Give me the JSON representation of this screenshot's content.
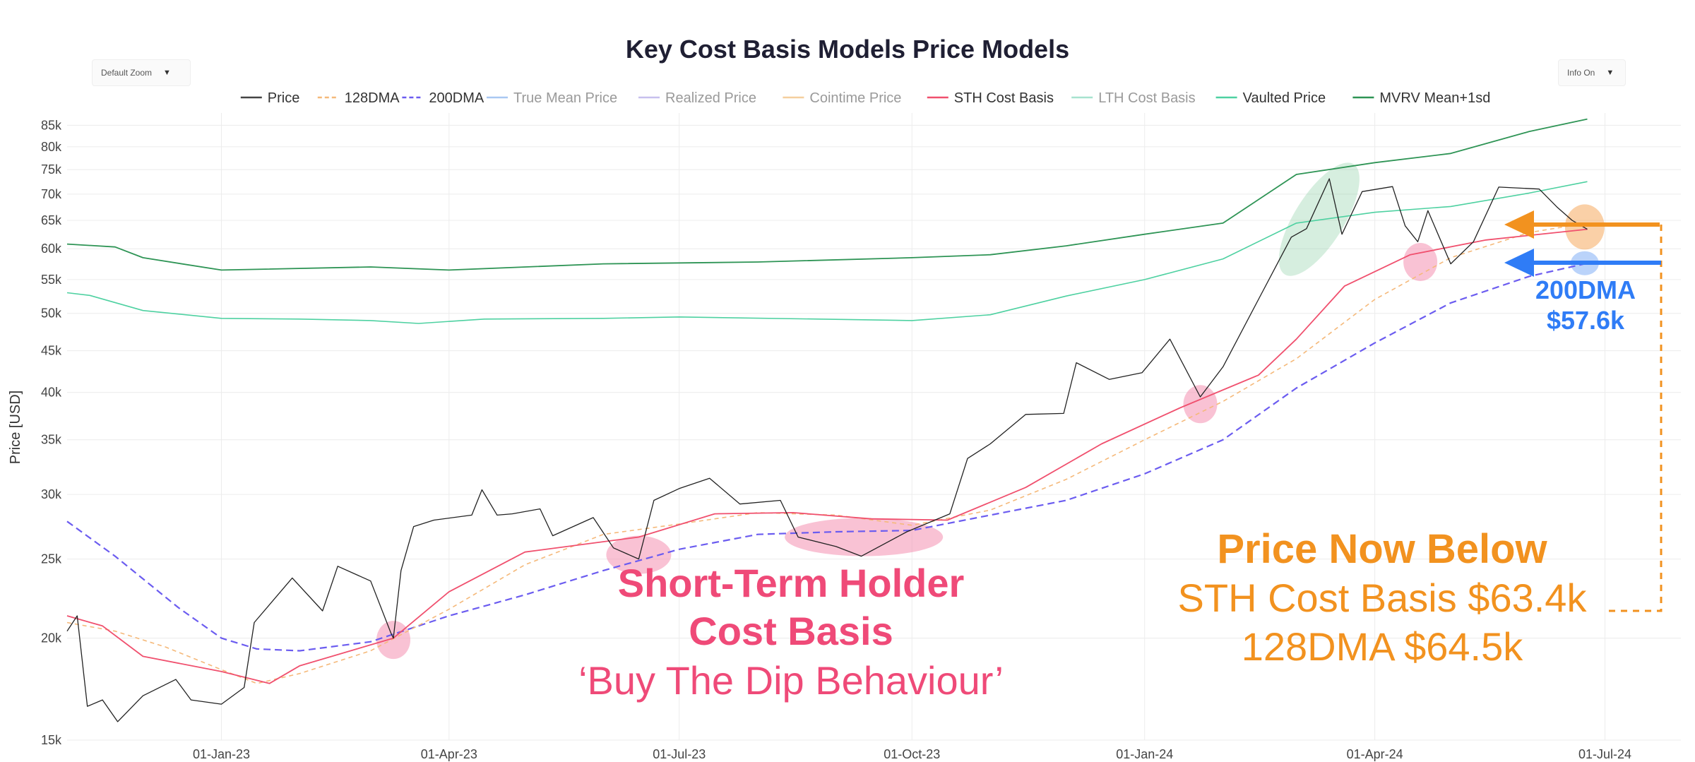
{
  "controls": {
    "zoom_label": "Default Zoom",
    "info_label": "Info On",
    "caret": "▼"
  },
  "chart_data": {
    "type": "line",
    "title": "Key Cost Basis Models Price Models",
    "xlabel": "",
    "ylabel": "Price [USD]",
    "y_scale": "log",
    "ylim": [
      15000,
      88000
    ],
    "xlim": [
      "2022-11-01",
      "2024-07-31"
    ],
    "grid": true,
    "legend_position": "top-center",
    "y_ticks": [
      {
        "value": 15000,
        "label": "15k"
      },
      {
        "value": 20000,
        "label": "20k"
      },
      {
        "value": 25000,
        "label": "25k"
      },
      {
        "value": 30000,
        "label": "30k"
      },
      {
        "value": 35000,
        "label": "35k"
      },
      {
        "value": 40000,
        "label": "40k"
      },
      {
        "value": 45000,
        "label": "45k"
      },
      {
        "value": 50000,
        "label": "50k"
      },
      {
        "value": 55000,
        "label": "55k"
      },
      {
        "value": 60000,
        "label": "60k"
      },
      {
        "value": 65000,
        "label": "65k"
      },
      {
        "value": 70000,
        "label": "70k"
      },
      {
        "value": 75000,
        "label": "75k"
      },
      {
        "value": 80000,
        "label": "80k"
      },
      {
        "value": 85000,
        "label": "85k"
      }
    ],
    "x_ticks": [
      {
        "date": "2023-01-01",
        "label": "01-Jan-23"
      },
      {
        "date": "2023-04-01",
        "label": "01-Apr-23"
      },
      {
        "date": "2023-07-01",
        "label": "01-Jul-23"
      },
      {
        "date": "2023-10-01",
        "label": "01-Oct-23"
      },
      {
        "date": "2024-01-01",
        "label": "01-Jan-24"
      },
      {
        "date": "2024-04-01",
        "label": "01-Apr-24"
      },
      {
        "date": "2024-07-01",
        "label": "01-Jul-24"
      }
    ],
    "legend": [
      {
        "name": "Price",
        "color": "#444444",
        "dash": "solid",
        "muted": false
      },
      {
        "name": "128DMA",
        "color": "#f5b97a",
        "dash": "dash",
        "muted": false
      },
      {
        "name": "200DMA",
        "color": "#6b5cf0",
        "dash": "dash",
        "muted": false
      },
      {
        "name": "True Mean Price",
        "color": "#a9c8f2",
        "dash": "solid",
        "muted": true
      },
      {
        "name": "Realized Price",
        "color": "#c7c0ee",
        "dash": "solid",
        "muted": true
      },
      {
        "name": "Cointime Price",
        "color": "#f5cf9e",
        "dash": "solid",
        "muted": true
      },
      {
        "name": "STH Cost Basis",
        "color": "#f0506e",
        "dash": "solid",
        "muted": false
      },
      {
        "name": "LTH Cost Basis",
        "color": "#a7e3cf",
        "dash": "solid",
        "muted": true
      },
      {
        "name": "Vaulted Price",
        "color": "#4ed1a1",
        "dash": "solid",
        "muted": false
      },
      {
        "name": "MVRV Mean+1sd",
        "color": "#2e9455",
        "dash": "solid",
        "muted": false
      }
    ],
    "series": [
      {
        "name": "Price",
        "key": "price",
        "color": "#222222",
        "width": 1.3,
        "dash": "",
        "points": [
          [
            "2022-11-01",
            20400
          ],
          [
            "2022-11-05",
            21300
          ],
          [
            "2022-11-09",
            16500
          ],
          [
            "2022-11-15",
            16800
          ],
          [
            "2022-11-21",
            15800
          ],
          [
            "2022-12-01",
            17000
          ],
          [
            "2022-12-14",
            17800
          ],
          [
            "2022-12-20",
            16800
          ],
          [
            "2023-01-01",
            16600
          ],
          [
            "2023-01-10",
            17400
          ],
          [
            "2023-01-14",
            20900
          ],
          [
            "2023-01-29",
            23700
          ],
          [
            "2023-02-10",
            21600
          ],
          [
            "2023-02-16",
            24500
          ],
          [
            "2023-03-01",
            23500
          ],
          [
            "2023-03-09",
            20300
          ],
          [
            "2023-03-10",
            20000
          ],
          [
            "2023-03-13",
            24200
          ],
          [
            "2023-03-18",
            27400
          ],
          [
            "2023-03-26",
            27900
          ],
          [
            "2023-04-10",
            28300
          ],
          [
            "2023-04-14",
            30400
          ],
          [
            "2023-04-20",
            28300
          ],
          [
            "2023-04-26",
            28400
          ],
          [
            "2023-05-07",
            28800
          ],
          [
            "2023-05-12",
            26700
          ],
          [
            "2023-05-28",
            28100
          ],
          [
            "2023-06-05",
            25800
          ],
          [
            "2023-06-15",
            25000
          ],
          [
            "2023-06-21",
            29500
          ],
          [
            "2023-07-01",
            30500
          ],
          [
            "2023-07-13",
            31400
          ],
          [
            "2023-07-25",
            29200
          ],
          [
            "2023-08-10",
            29500
          ],
          [
            "2023-08-17",
            26600
          ],
          [
            "2023-09-01",
            25900
          ],
          [
            "2023-09-11",
            25200
          ],
          [
            "2023-09-29",
            27000
          ],
          [
            "2023-10-16",
            28400
          ],
          [
            "2023-10-23",
            33200
          ],
          [
            "2023-11-01",
            34600
          ],
          [
            "2023-11-15",
            37600
          ],
          [
            "2023-11-30",
            37700
          ],
          [
            "2023-12-05",
            43500
          ],
          [
            "2023-12-18",
            41500
          ],
          [
            "2023-12-31",
            42300
          ],
          [
            "2024-01-11",
            46500
          ],
          [
            "2024-01-23",
            39500
          ],
          [
            "2024-02-01",
            43000
          ],
          [
            "2024-02-15",
            52000
          ],
          [
            "2024-02-28",
            62000
          ],
          [
            "2024-03-05",
            63500
          ],
          [
            "2024-03-14",
            73100
          ],
          [
            "2024-03-19",
            62500
          ],
          [
            "2024-03-27",
            70500
          ],
          [
            "2024-04-08",
            71500
          ],
          [
            "2024-04-13",
            64000
          ],
          [
            "2024-04-18",
            61200
          ],
          [
            "2024-04-22",
            66800
          ],
          [
            "2024-05-01",
            57500
          ],
          [
            "2024-05-10",
            61200
          ],
          [
            "2024-05-20",
            71400
          ],
          [
            "2024-06-05",
            71000
          ],
          [
            "2024-06-12",
            67500
          ],
          [
            "2024-06-18",
            65000
          ],
          [
            "2024-06-24",
            63400
          ]
        ]
      },
      {
        "name": "128DMA",
        "key": "dma128",
        "color": "#f5b97a",
        "width": 1.6,
        "dash": "6,5",
        "points": [
          [
            "2022-11-01",
            20900
          ],
          [
            "2022-11-20",
            20400
          ],
          [
            "2022-12-10",
            19500
          ],
          [
            "2023-01-01",
            18300
          ],
          [
            "2023-01-15",
            17600
          ],
          [
            "2023-02-01",
            18100
          ],
          [
            "2023-03-01",
            19300
          ],
          [
            "2023-04-01",
            21700
          ],
          [
            "2023-05-01",
            24600
          ],
          [
            "2023-06-01",
            26800
          ],
          [
            "2023-07-01",
            27600
          ],
          [
            "2023-08-01",
            28500
          ],
          [
            "2023-09-01",
            28300
          ],
          [
            "2023-10-01",
            27500
          ],
          [
            "2023-11-01",
            28700
          ],
          [
            "2023-12-01",
            31300
          ],
          [
            "2024-01-01",
            35000
          ],
          [
            "2024-02-01",
            39000
          ],
          [
            "2024-03-01",
            44000
          ],
          [
            "2024-04-01",
            52000
          ],
          [
            "2024-05-01",
            58500
          ],
          [
            "2024-06-01",
            62800
          ],
          [
            "2024-06-24",
            64500
          ]
        ]
      },
      {
        "name": "200DMA",
        "key": "dma200",
        "color": "#6b5cf0",
        "width": 2.2,
        "dash": "10,6",
        "points": [
          [
            "2022-11-01",
            27800
          ],
          [
            "2022-11-20",
            25200
          ],
          [
            "2022-12-15",
            21800
          ],
          [
            "2023-01-01",
            20000
          ],
          [
            "2023-01-15",
            19400
          ],
          [
            "2023-02-01",
            19300
          ],
          [
            "2023-03-01",
            19800
          ],
          [
            "2023-04-01",
            21300
          ],
          [
            "2023-05-01",
            22600
          ],
          [
            "2023-06-01",
            24200
          ],
          [
            "2023-07-01",
            25700
          ],
          [
            "2023-08-01",
            26800
          ],
          [
            "2023-09-01",
            27000
          ],
          [
            "2023-10-01",
            27100
          ],
          [
            "2023-11-01",
            28300
          ],
          [
            "2023-12-01",
            29500
          ],
          [
            "2024-01-01",
            31800
          ],
          [
            "2024-02-01",
            35000
          ],
          [
            "2024-03-01",
            40500
          ],
          [
            "2024-04-01",
            46000
          ],
          [
            "2024-05-01",
            51500
          ],
          [
            "2024-06-01",
            55500
          ],
          [
            "2024-06-24",
            57600
          ]
        ]
      },
      {
        "name": "STH Cost Basis",
        "key": "sth",
        "color": "#f0506e",
        "width": 1.8,
        "dash": "",
        "points": [
          [
            "2022-11-01",
            21300
          ],
          [
            "2022-11-15",
            20700
          ],
          [
            "2022-12-01",
            19000
          ],
          [
            "2023-01-01",
            18200
          ],
          [
            "2023-01-20",
            17600
          ],
          [
            "2023-02-01",
            18500
          ],
          [
            "2023-03-10",
            20000
          ],
          [
            "2023-04-01",
            22800
          ],
          [
            "2023-05-01",
            25500
          ],
          [
            "2023-06-15",
            26600
          ],
          [
            "2023-07-15",
            28400
          ],
          [
            "2023-08-15",
            28500
          ],
          [
            "2023-09-15",
            28000
          ],
          [
            "2023-10-15",
            27900
          ],
          [
            "2023-11-15",
            30600
          ],
          [
            "2023-12-15",
            34600
          ],
          [
            "2024-01-15",
            38300
          ],
          [
            "2024-02-15",
            42000
          ],
          [
            "2024-03-01",
            46500
          ],
          [
            "2024-03-20",
            54000
          ],
          [
            "2024-04-15",
            59000
          ],
          [
            "2024-05-15",
            61500
          ],
          [
            "2024-06-24",
            63400
          ]
        ]
      },
      {
        "name": "Vaulted Price",
        "key": "vaulted",
        "color": "#4ed1a1",
        "width": 1.6,
        "dash": "",
        "points": [
          [
            "2022-11-01",
            53000
          ],
          [
            "2022-11-10",
            52600
          ],
          [
            "2022-12-01",
            50400
          ],
          [
            "2023-01-01",
            49300
          ],
          [
            "2023-02-01",
            49200
          ],
          [
            "2023-03-01",
            49000
          ],
          [
            "2023-03-20",
            48600
          ],
          [
            "2023-04-15",
            49200
          ],
          [
            "2023-06-01",
            49300
          ],
          [
            "2023-07-01",
            49500
          ],
          [
            "2023-10-01",
            49000
          ],
          [
            "2023-11-01",
            49800
          ],
          [
            "2023-12-01",
            52500
          ],
          [
            "2024-01-01",
            55000
          ],
          [
            "2024-02-01",
            58300
          ],
          [
            "2024-03-01",
            64500
          ],
          [
            "2024-04-01",
            66500
          ],
          [
            "2024-05-01",
            67600
          ],
          [
            "2024-06-01",
            70200
          ],
          [
            "2024-06-24",
            72500
          ]
        ]
      },
      {
        "name": "MVRV Mean+1sd",
        "key": "mvrv",
        "color": "#2e9455",
        "width": 1.8,
        "dash": "",
        "points": [
          [
            "2022-11-01",
            60800
          ],
          [
            "2022-11-20",
            60300
          ],
          [
            "2022-12-01",
            58500
          ],
          [
            "2023-01-01",
            56500
          ],
          [
            "2023-03-01",
            57000
          ],
          [
            "2023-04-01",
            56500
          ],
          [
            "2023-06-01",
            57500
          ],
          [
            "2023-08-01",
            57800
          ],
          [
            "2023-10-01",
            58500
          ],
          [
            "2023-11-01",
            59000
          ],
          [
            "2023-12-01",
            60500
          ],
          [
            "2024-01-01",
            62500
          ],
          [
            "2024-02-01",
            64500
          ],
          [
            "2024-03-01",
            74000
          ],
          [
            "2024-04-01",
            76500
          ],
          [
            "2024-05-01",
            78500
          ],
          [
            "2024-06-01",
            83500
          ],
          [
            "2024-06-24",
            86500
          ]
        ]
      }
    ],
    "highlights": [
      {
        "date": "2023-03-10",
        "value": 19900,
        "color": "pink"
      },
      {
        "date": "2023-06-15",
        "value": 25300,
        "color": "pink"
      },
      {
        "date": "2023-09-12",
        "value": 26600,
        "color": "pink"
      },
      {
        "date": "2024-01-23",
        "value": 38700,
        "color": "pink"
      },
      {
        "date": "2024-04-19",
        "value": 57800,
        "color": "pink"
      },
      {
        "date": "2024-03-10",
        "value": 65200,
        "color": "green"
      },
      {
        "date": "2024-06-23",
        "value": 63800,
        "color": "orange"
      },
      {
        "date": "2024-06-23",
        "value": 57600,
        "color": "blue"
      }
    ],
    "annotations": {
      "sth_title_1": "Short-Term Holder",
      "sth_title_2": "Cost Basis",
      "sth_sub": "‘Buy The Dip Behaviour’",
      "below_title": "Price Now Below",
      "below_line1": "STH Cost Basis $63.4k",
      "below_line2": "128DMA $64.5k",
      "dma200_label": "200DMA",
      "dma200_value": "$57.6k"
    },
    "colors": {
      "sth_annotation": "#ef4a78",
      "orange_annotation": "#f2921f",
      "blue_annotation": "#2f7cf6"
    }
  }
}
